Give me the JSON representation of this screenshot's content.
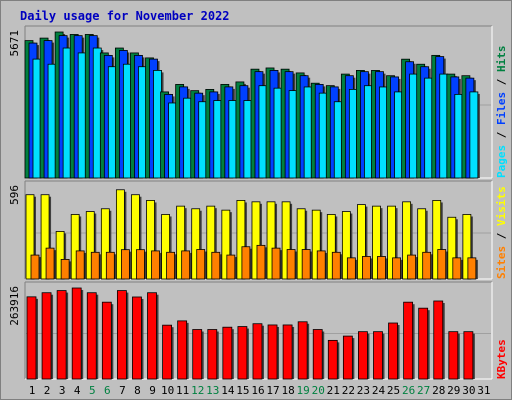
{
  "chart_data": {
    "type": "bar",
    "title": "Daily usage for November 2022",
    "days": [
      "1",
      "2",
      "3",
      "4",
      "5",
      "6",
      "7",
      "8",
      "9",
      "10",
      "11",
      "12",
      "13",
      "14",
      "15",
      "16",
      "17",
      "18",
      "19",
      "20",
      "21",
      "22",
      "23",
      "24",
      "25",
      "26",
      "27",
      "28",
      "29",
      "30",
      "31"
    ],
    "weekend_days": [
      "5",
      "6",
      "12",
      "13",
      "19",
      "20",
      "26",
      "27"
    ],
    "colors": {
      "background": "#c0c0c0",
      "plot": "#c0c0c0",
      "title": "#0000c0",
      "hits": "#008040",
      "files": "#0040ff",
      "pages": "#00e0ff",
      "visits": "#ffff00",
      "sites": "#ff8000",
      "kbytes": "#ff0000",
      "weekend": "#008040",
      "weekday": "#000000"
    },
    "panels": [
      {
        "name": "hits-files-pages",
        "ymax": 5671,
        "ymax_label": "5671",
        "legend": [
          {
            "text": "Pages",
            "color": "#00e0ff"
          },
          {
            "text": " / ",
            "color": "#000000"
          },
          {
            "text": "Files",
            "color": "#0040ff"
          },
          {
            "text": " / ",
            "color": "#000000"
          },
          {
            "text": "Hits",
            "color": "#008040"
          }
        ],
        "series": [
          {
            "name": "Hits",
            "values": [
              5337,
              5434,
              5671,
              5576,
              5576,
              4858,
              5048,
              4858,
              4665,
              3344,
              3635,
              3393,
              3441,
              3636,
              3732,
              4227,
              4274,
              4227,
              4082,
              3682,
              3588,
              4036,
              4179,
              4179,
              3974,
              4615,
              4419,
              4763,
              4036,
              3974,
              0
            ]
          },
          {
            "name": "Files",
            "values": [
              5241,
              5337,
              5530,
              5530,
              5530,
              4762,
              4954,
              4762,
              4618,
              3247,
              3539,
              3295,
              3344,
              3539,
              3586,
              4131,
              4179,
              4131,
              3974,
              3635,
              3539,
              3974,
              4131,
              4131,
              3926,
              4516,
              4322,
              4716,
              3926,
              3879,
              0
            ]
          },
          {
            "name": "Pages",
            "values": [
              4618,
              4419,
              5048,
              4858,
              5048,
              4322,
              4419,
              4322,
              4179,
              2914,
              3100,
              2962,
              3008,
              3008,
              3008,
              3585,
              3489,
              3394,
              3536,
              3296,
              2962,
              3441,
              3585,
              3536,
              3344,
              4036,
              3879,
              4036,
              3247,
              3344,
              0
            ]
          }
        ]
      },
      {
        "name": "visits-sites",
        "ymax": 596,
        "ymax_label": "596",
        "legend": [
          {
            "text": "Sites",
            "color": "#ff8000"
          },
          {
            "text": " / ",
            "color": "#000000"
          },
          {
            "text": "Visits",
            "color": "#ffff00"
          }
        ],
        "series": [
          {
            "name": "Visits",
            "values": [
              546,
              546,
              308,
              418,
              437,
              455,
              578,
              546,
              509,
              418,
              472,
              455,
              472,
              446,
              509,
              500,
              500,
              500,
              455,
              446,
              418,
              437,
              482,
              472,
              472,
              500,
              455,
              509,
              400,
              418,
              0
            ]
          },
          {
            "name": "Sites",
            "values": [
              155,
              200,
              127,
              182,
              173,
              173,
              190,
              190,
              182,
              173,
              182,
              191,
              173,
              155,
              209,
              218,
              200,
              191,
              191,
              182,
              173,
              137,
              146,
              146,
              137,
              155,
              173,
              191,
              137,
              137,
              0
            ]
          }
        ]
      },
      {
        "name": "kbytes",
        "ymax": 263916,
        "ymax_label": "263916",
        "legend": [
          {
            "text": "KBytes",
            "color": "#ff0000"
          }
        ],
        "series": [
          {
            "name": "KBytes",
            "values": [
              238300,
              250250,
              256450,
              263916,
              250250,
              222800,
              256450,
              237870,
              250250,
              156140,
              168560,
              143520,
              143520,
              150240,
              152140,
              160340,
              156750,
              156750,
              165970,
              143520,
              112020,
              124440,
              137300,
              137300,
              162380,
              222800,
              205410,
              226240,
              137300,
              137300,
              0
            ]
          }
        ]
      }
    ]
  }
}
